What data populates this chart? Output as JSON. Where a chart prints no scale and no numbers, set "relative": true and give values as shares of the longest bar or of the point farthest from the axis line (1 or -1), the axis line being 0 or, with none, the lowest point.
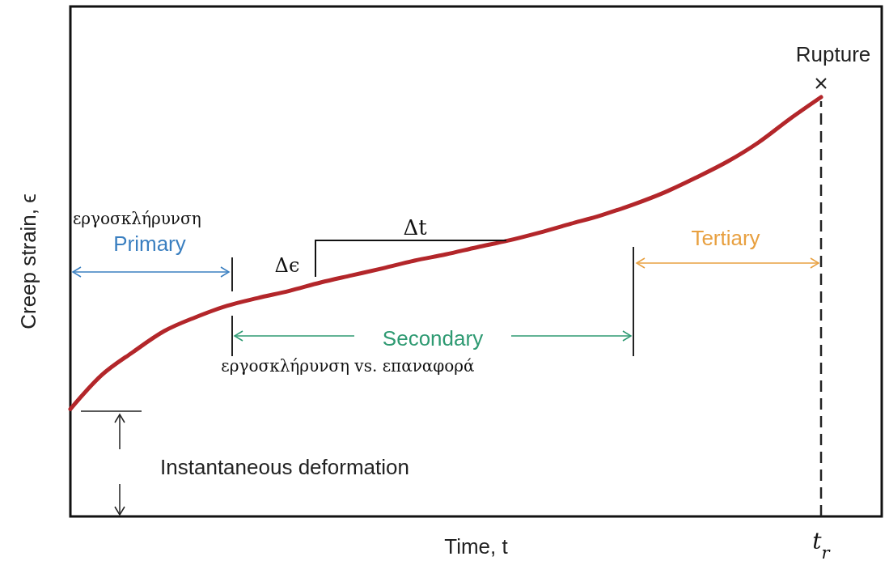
{
  "chart_data": {
    "type": "line",
    "relative": true,
    "xlabel": "Time, t",
    "ylabel": "Creep strain, ϵ",
    "categories": [
      null,
      null,
      null,
      null,
      null,
      null,
      null,
      null,
      null,
      null,
      null,
      null,
      null,
      null,
      null,
      null,
      null,
      null,
      null,
      null,
      null,
      null,
      null,
      null,
      null
    ],
    "series": [
      {
        "color": "#b3262a",
        "values": [
          0.256,
          0.337,
          0.392,
          0.442,
          0.475,
          0.502,
          0.521,
          0.538,
          0.558,
          0.575,
          0.592,
          0.61,
          0.625,
          0.642,
          0.658,
          0.677,
          0.698,
          0.719,
          0.744,
          0.773,
          0.808,
          0.846,
          0.892,
          0.948,
          1.0
        ]
      }
    ],
    "annotations": [
      "εργοσκλήρυνση",
      "Primary",
      "Δt",
      "Δϵ",
      "Secondary",
      "εργοσκλήρυνση vs. επαναφορά",
      "Tertiary",
      "Instantaneous deformation",
      "Rupture",
      "t$_{r}$"
    ]
  }
}
